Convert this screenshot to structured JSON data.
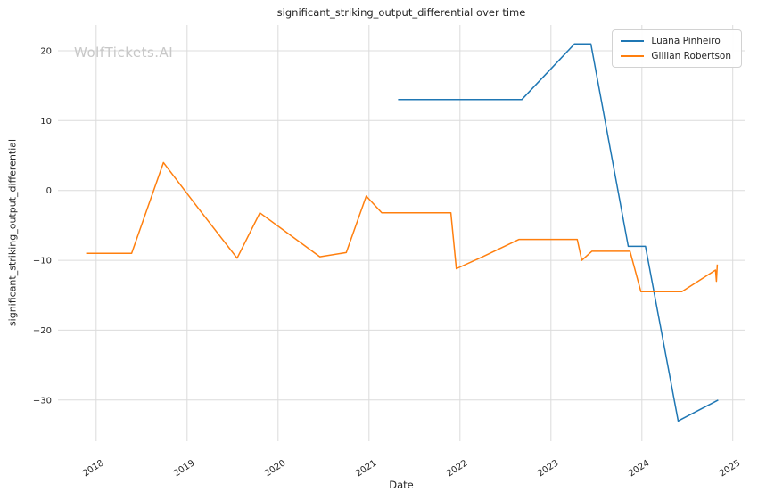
{
  "watermark": "WolfTickets.AI",
  "chart_data": {
    "type": "line",
    "title": "significant_striking_output_differential over time",
    "xlabel": "Date",
    "ylabel": "significant_striking_output_differential",
    "legend_position": "upper right",
    "grid": true,
    "xlim": [
      2017.58,
      2025.13
    ],
    "ylim": [
      -35.9,
      23.7
    ],
    "x_ticks": [
      2018,
      2019,
      2020,
      2021,
      2022,
      2023,
      2024,
      2025
    ],
    "y_ticks": [
      -30,
      -20,
      -10,
      0,
      10,
      20
    ],
    "series": [
      {
        "name": "Luana Pinheiro",
        "color": "#1f77b4",
        "points": [
          [
            2021.32,
            13
          ],
          [
            2022.68,
            13
          ],
          [
            2023.26,
            21
          ],
          [
            2023.44,
            21
          ],
          [
            2023.85,
            -8
          ],
          [
            2024.04,
            -8
          ],
          [
            2024.4,
            -33
          ],
          [
            2024.84,
            -30
          ]
        ]
      },
      {
        "name": "Gillian Robertson",
        "color": "#ff7f0e",
        "points": [
          [
            2017.89,
            -9
          ],
          [
            2018.39,
            -9
          ],
          [
            2018.74,
            4
          ],
          [
            2019.12,
            -2.5
          ],
          [
            2019.55,
            -9.7
          ],
          [
            2019.8,
            -3.2
          ],
          [
            2020.46,
            -9.5
          ],
          [
            2020.75,
            -8.9
          ],
          [
            2020.97,
            -0.8
          ],
          [
            2021.14,
            -3.2
          ],
          [
            2021.9,
            -3.2
          ],
          [
            2021.96,
            -11.2
          ],
          [
            2022.25,
            -9.5
          ],
          [
            2022.65,
            -7
          ],
          [
            2023.29,
            -7
          ],
          [
            2023.34,
            -10
          ],
          [
            2023.45,
            -8.7
          ],
          [
            2023.87,
            -8.7
          ],
          [
            2023.99,
            -14.5
          ],
          [
            2024.44,
            -14.5
          ],
          [
            2024.81,
            -11.4
          ],
          [
            2024.82,
            -13.0
          ],
          [
            2024.83,
            -10.6
          ]
        ]
      }
    ]
  }
}
